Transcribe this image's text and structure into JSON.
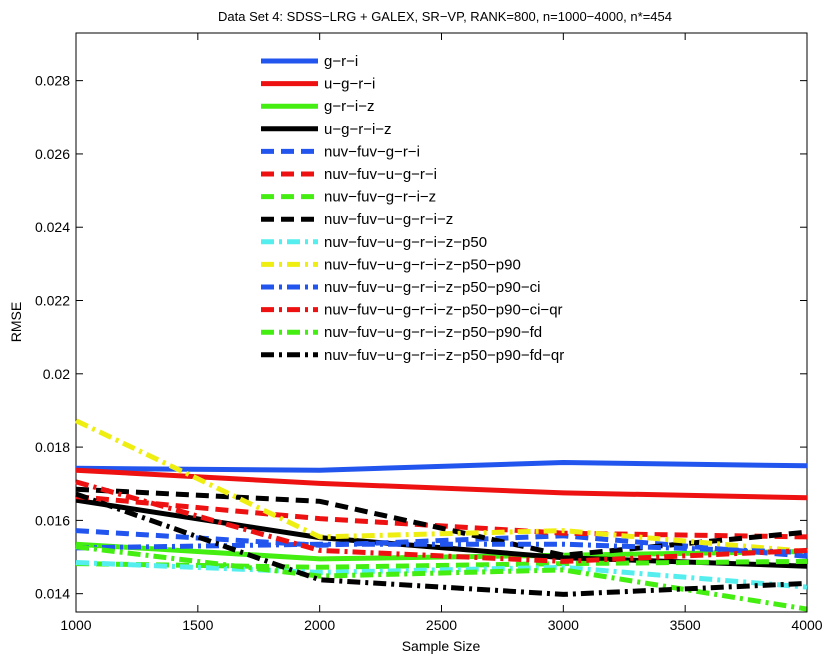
{
  "chart_data": {
    "type": "line",
    "title": "Data Set 4: SDSS−LRG + GALEX, SR−VP, RANK=800, n=1000−4000, n*=454",
    "xlabel": "Sample Size",
    "ylabel": "RMSE",
    "xlim": [
      1000,
      4000
    ],
    "ylim": [
      0.0135,
      0.0293
    ],
    "xticks": [
      1000,
      1500,
      2000,
      2500,
      3000,
      3500,
      4000
    ],
    "yticks": [
      0.014,
      0.016,
      0.018,
      0.02,
      0.022,
      0.024,
      0.026,
      0.028
    ],
    "ytick_labels": [
      "0.014",
      "0.016",
      "0.018",
      "0.02",
      "0.022",
      "0.024",
      "0.026",
      "0.028"
    ],
    "legend_position": "top-left-inside",
    "x": [
      1000,
      2000,
      3000,
      4000
    ],
    "series": [
      {
        "name": "g−r−i",
        "color": "#2255ee",
        "style": "solid",
        "values": [
          0.01742,
          0.01737,
          0.01758,
          0.01749
        ]
      },
      {
        "name": "u−g−r−i",
        "color": "#ee1111",
        "style": "solid",
        "values": [
          0.01737,
          0.01701,
          0.01675,
          0.01662
        ]
      },
      {
        "name": "g−r−i−z",
        "color": "#44ee11",
        "style": "solid",
        "values": [
          0.01535,
          0.01495,
          0.01505,
          0.01515
        ]
      },
      {
        "name": "u−g−r−i−z",
        "color": "#000000",
        "style": "solid",
        "values": [
          0.01655,
          0.01553,
          0.01498,
          0.01475
        ]
      },
      {
        "name": "nuv−fuv−g−r−i",
        "color": "#2255ee",
        "style": "dashed",
        "values": [
          0.01572,
          0.01532,
          0.01558,
          0.01502
        ]
      },
      {
        "name": "nuv−fuv−u−g−r−i",
        "color": "#ee1111",
        "style": "dashed",
        "values": [
          0.01665,
          0.01605,
          0.01565,
          0.01555
        ]
      },
      {
        "name": "nuv−fuv−g−r−i−z",
        "color": "#44ee11",
        "style": "dashed",
        "values": [
          0.01482,
          0.01472,
          0.01482,
          0.01488
        ]
      },
      {
        "name": "nuv−fuv−u−g−r−i−z",
        "color": "#000000",
        "style": "dashed",
        "values": [
          0.01685,
          0.01652,
          0.01505,
          0.01568
        ]
      },
      {
        "name": "nuv−fuv−u−g−r−i−z−p50",
        "color": "#55eeee",
        "style": "dashdot",
        "values": [
          0.01485,
          0.01458,
          0.01472,
          0.01418
        ]
      },
      {
        "name": "nuv−fuv−u−g−r−i−z−p50−p90",
        "color": "#eeee11",
        "style": "dashdot",
        "values": [
          0.01872,
          0.01555,
          0.01572,
          0.01515
        ]
      },
      {
        "name": "nuv−fuv−u−g−r−i−z−p50−p90−ci",
        "color": "#2255ee",
        "style": "dashdot",
        "values": [
          0.01525,
          0.01535,
          0.01535,
          0.01512
        ]
      },
      {
        "name": "nuv−fuv−u−g−r−i−z−p50−p90−ci−qr",
        "color": "#ee1111",
        "style": "dashdot",
        "values": [
          0.01705,
          0.01518,
          0.01488,
          0.01518
        ]
      },
      {
        "name": "nuv−fuv−u−g−r−i−z−p50−p90−fd",
        "color": "#44ee11",
        "style": "dashdot",
        "values": [
          0.01528,
          0.01448,
          0.01465,
          0.01358
        ]
      },
      {
        "name": "nuv−fuv−u−g−r−i−z−p50−p90−fd−qr",
        "color": "#000000",
        "style": "dashdot",
        "values": [
          0.01672,
          0.01438,
          0.01398,
          0.01428
        ]
      }
    ]
  }
}
